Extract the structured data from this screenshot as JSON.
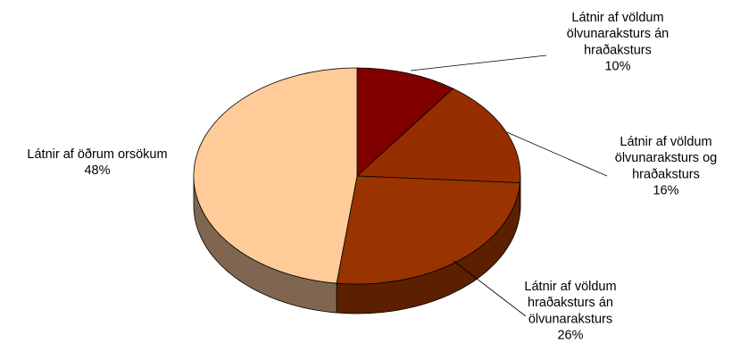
{
  "chart_data": {
    "type": "pie",
    "three_d": true,
    "start": "12 o'clock, clockwise",
    "slices": [
      {
        "label": [
          "Látnir af völdum",
          "ölvunaraksturs án",
          "hraðaksturs"
        ],
        "value": 10,
        "value_text": "10%",
        "color": "#800000",
        "side_color": "#4d0000"
      },
      {
        "label": [
          "Látnir af völdum",
          "ölvunaraksturs og",
          "hraðaksturs"
        ],
        "value": 16,
        "value_text": "16%",
        "color": "#962e00",
        "side_color": "#571b00"
      },
      {
        "label": [
          "Látnir af völdum",
          "hraðaksturs án",
          "ölvunaraksturs"
        ],
        "value": 26,
        "value_text": "26%",
        "color": "#993300",
        "side_color": "#5c1f00"
      },
      {
        "label": [
          "Látnir af öðrum orsökum"
        ],
        "value": 48,
        "value_text": "48%",
        "color": "#ffcc99",
        "side_color": "#806651"
      }
    ]
  }
}
